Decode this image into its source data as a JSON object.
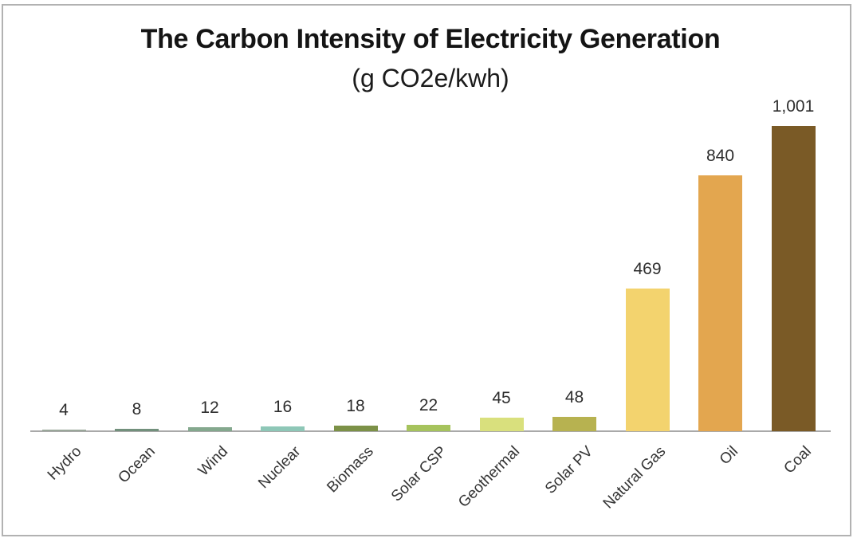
{
  "window": {
    "background": "#ffffff",
    "frame_border_color": "#b2b2b2"
  },
  "chart": {
    "title": "The Carbon Intensity of Electricity Generation",
    "subtitle": "(g CO2e/kwh)"
  },
  "chart_data": {
    "type": "bar",
    "title": "The Carbon Intensity of Electricity Generation",
    "subtitle": "(g CO2e/kwh)",
    "unit": "g CO2e/kwh",
    "categories": [
      "Hydro",
      "Ocean",
      "Wind",
      "Nuclear",
      "Biomass",
      "Solar CSP",
      "Geothermal",
      "Solar PV",
      "Natural Gas",
      "Oil",
      "Coal"
    ],
    "values": [
      4,
      8,
      12,
      16,
      18,
      22,
      45,
      48,
      469,
      840,
      1001
    ],
    "value_labels": [
      "4",
      "8",
      "12",
      "16",
      "18",
      "22",
      "45",
      "48",
      "469",
      "840",
      "1,001"
    ],
    "bar_colors": [
      "#9aa79a",
      "#72907c",
      "#84a88e",
      "#8ec7b7",
      "#7c9147",
      "#a6c35d",
      "#d9e07d",
      "#b7b250",
      "#f3d36e",
      "#e3a64f",
      "#7a5a26"
    ],
    "xlabel": "",
    "ylabel": "",
    "ylim": [
      0,
      1050
    ],
    "grid": false,
    "legend_position": "none",
    "x_tick_rotation_deg": -45,
    "axis_line_color": "#a9a9a9",
    "label_color": "#2d2d2d",
    "category_label_color": "#343434"
  }
}
